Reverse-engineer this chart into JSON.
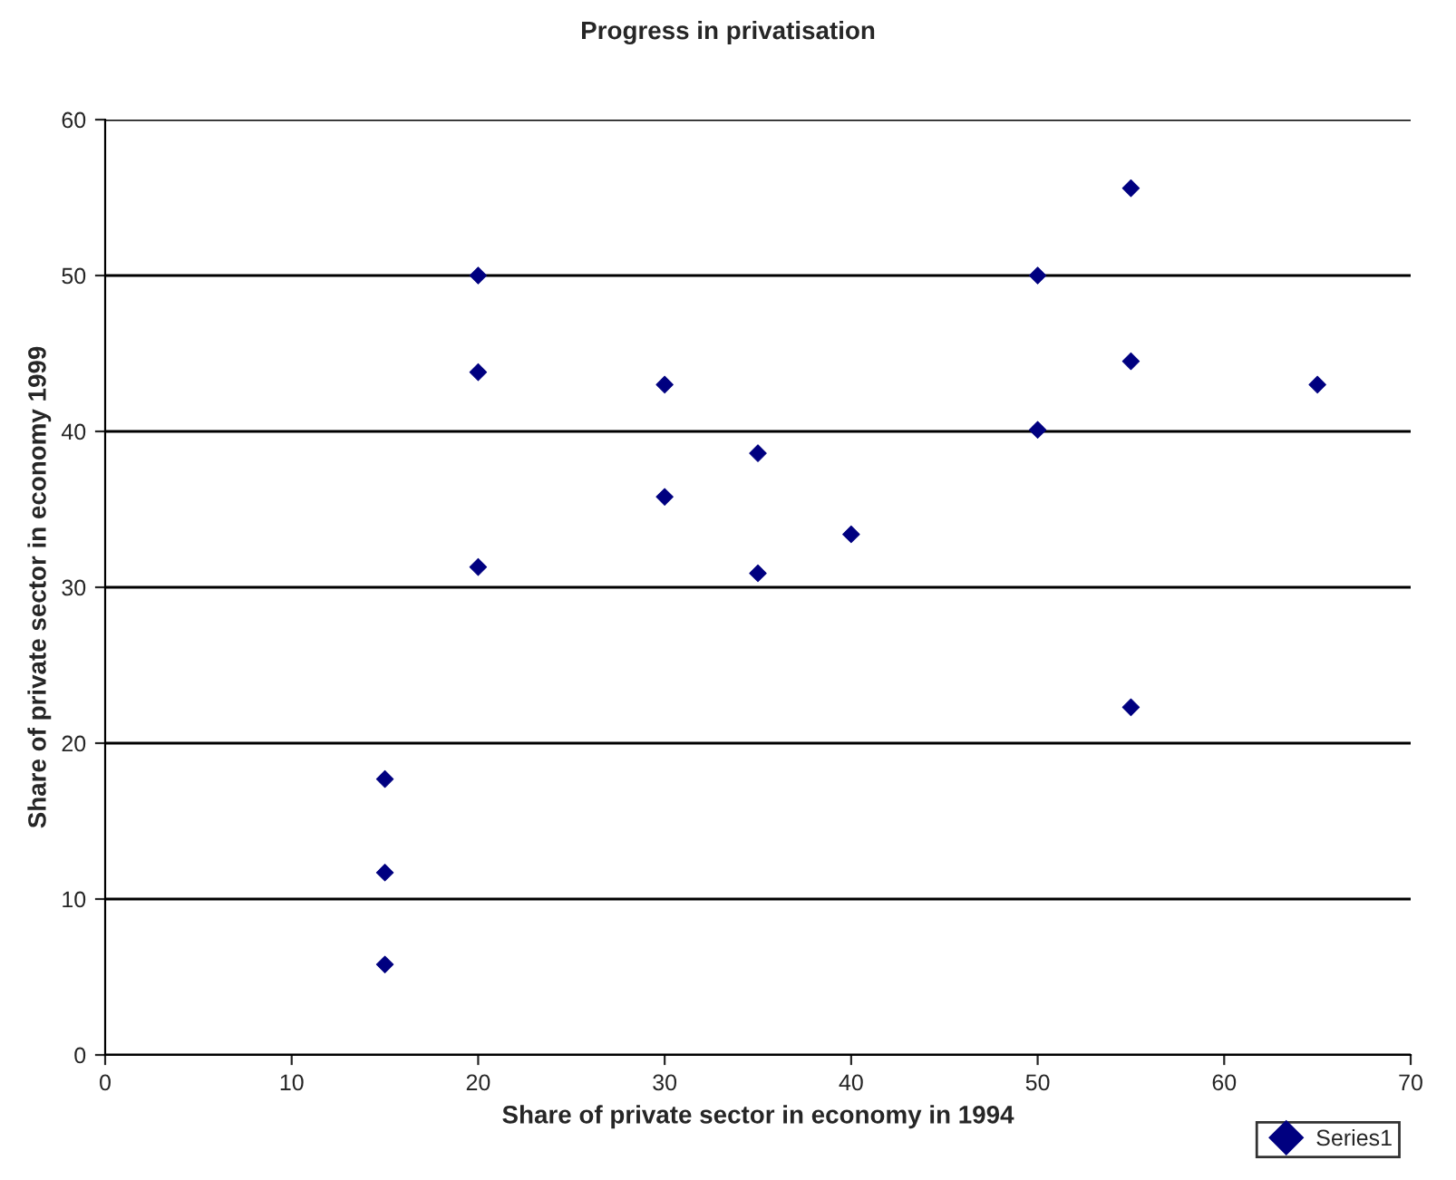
{
  "chart_data": {
    "type": "scatter",
    "title": "Progress in privatisation",
    "xlabel": "Share of private sector in economy in 1994",
    "ylabel": "Share of private sector in economy 1999",
    "x": [
      15,
      15,
      15,
      20,
      20,
      20,
      30,
      30,
      35,
      35,
      40,
      50,
      50,
      55,
      55,
      55,
      65
    ],
    "series": [
      {
        "name": "Series1",
        "color": "#000080",
        "values": [
          17.7,
          11.7,
          5.8,
          50,
          43.8,
          31.3,
          43,
          35.8,
          38.6,
          30.9,
          33.4,
          50,
          40.1,
          55.6,
          44.5,
          22.3,
          43
        ]
      }
    ],
    "xlim": [
      0,
      70
    ],
    "xticks": [
      0,
      10,
      20,
      30,
      40,
      50,
      60,
      70
    ],
    "ylim": [
      0,
      60
    ],
    "yticks": [
      0,
      10,
      20,
      30,
      40,
      50,
      60
    ],
    "grid": "y",
    "legend": "bottom right",
    "marker": "diamond"
  }
}
